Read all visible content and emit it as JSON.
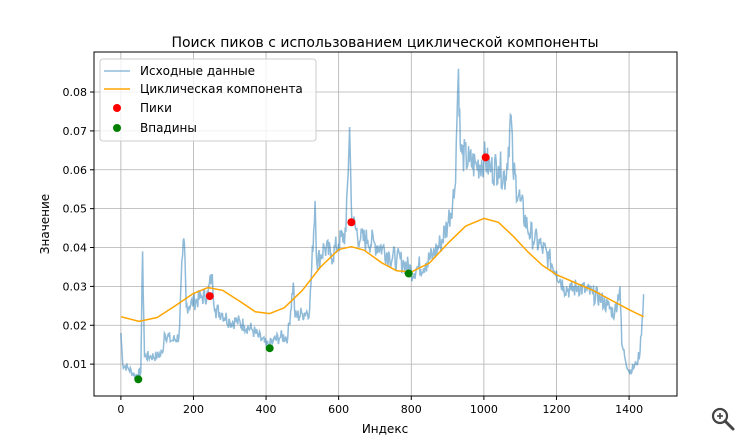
{
  "chart_data": {
    "type": "line",
    "title": "Поиск пиков с использованием циклической компоненты",
    "xlabel": "Индекс",
    "ylabel": "Значение",
    "xlim": [
      -74,
      1532
    ],
    "ylim": [
      0.0018,
      0.0903
    ],
    "xticks": [
      0,
      200,
      400,
      600,
      800,
      1000,
      1200,
      1400
    ],
    "yticks": [
      0.01,
      0.02,
      0.03,
      0.04,
      0.05,
      0.06,
      0.07,
      0.08
    ],
    "grid": true,
    "legend_position": "top-left",
    "series": [
      {
        "name": "Исходные данные",
        "color": "#1f77b4",
        "opacity": 0.5,
        "x": [
          0,
          5,
          20,
          40,
          55,
          60,
          65,
          80,
          100,
          115,
          120,
          140,
          160,
          170,
          175,
          180,
          200,
          220,
          240,
          250,
          260,
          280,
          300,
          320,
          340,
          360,
          380,
          400,
          410,
          420,
          440,
          460,
          475,
          480,
          500,
          520,
          535,
          540,
          560,
          580,
          600,
          620,
          630,
          635,
          640,
          660,
          680,
          700,
          720,
          740,
          760,
          780,
          800,
          820,
          840,
          860,
          880,
          900,
          920,
          930,
          935,
          940,
          960,
          980,
          1000,
          1020,
          1040,
          1060,
          1075,
          1080,
          1100,
          1120,
          1140,
          1160,
          1180,
          1200,
          1220,
          1240,
          1260,
          1280,
          1300,
          1320,
          1340,
          1360,
          1375,
          1380,
          1400,
          1420,
          1430,
          1440
        ],
        "y": [
          0.018,
          0.01,
          0.009,
          0.007,
          0.008,
          0.039,
          0.012,
          0.012,
          0.012,
          0.013,
          0.018,
          0.016,
          0.017,
          0.038,
          0.041,
          0.025,
          0.026,
          0.027,
          0.028,
          0.033,
          0.024,
          0.023,
          0.021,
          0.021,
          0.02,
          0.019,
          0.017,
          0.015,
          0.015,
          0.016,
          0.017,
          0.017,
          0.031,
          0.022,
          0.023,
          0.024,
          0.052,
          0.036,
          0.04,
          0.038,
          0.041,
          0.044,
          0.071,
          0.05,
          0.046,
          0.042,
          0.042,
          0.041,
          0.04,
          0.038,
          0.037,
          0.036,
          0.034,
          0.035,
          0.036,
          0.038,
          0.041,
          0.046,
          0.055,
          0.086,
          0.066,
          0.064,
          0.062,
          0.061,
          0.063,
          0.06,
          0.061,
          0.058,
          0.074,
          0.06,
          0.052,
          0.045,
          0.042,
          0.04,
          0.037,
          0.034,
          0.03,
          0.029,
          0.03,
          0.029,
          0.028,
          0.027,
          0.025,
          0.023,
          0.03,
          0.015,
          0.008,
          0.01,
          0.013,
          0.028
        ]
      },
      {
        "name": "Циклическая компонента",
        "color": "#ffa500",
        "x": [
          0,
          50,
          100,
          150,
          200,
          240,
          280,
          330,
          370,
          410,
          450,
          500,
          550,
          600,
          635,
          670,
          720,
          760,
          800,
          850,
          900,
          950,
          1000,
          1040,
          1080,
          1120,
          1160,
          1200,
          1250,
          1300,
          1350,
          1400,
          1440
        ],
        "y": [
          0.0222,
          0.021,
          0.022,
          0.025,
          0.0282,
          0.0297,
          0.029,
          0.026,
          0.0235,
          0.023,
          0.0245,
          0.029,
          0.035,
          0.0395,
          0.0402,
          0.0393,
          0.036,
          0.034,
          0.0337,
          0.036,
          0.041,
          0.0455,
          0.0475,
          0.0465,
          0.043,
          0.039,
          0.0355,
          0.033,
          0.031,
          0.029,
          0.0265,
          0.024,
          0.0222
        ]
      },
      {
        "name": "Пики",
        "type": "scatter",
        "color": "#ff0000",
        "x": [
          245,
          635,
          1005
        ],
        "y": [
          0.0275,
          0.0465,
          0.0632
        ]
      },
      {
        "name": "Впадины",
        "type": "scatter",
        "color": "#008000",
        "x": [
          48,
          410,
          793
        ],
        "y": [
          0.0061,
          0.0141,
          0.0333
        ]
      }
    ]
  },
  "toolbar": {
    "zoom_icon": "magnifier-icon"
  }
}
